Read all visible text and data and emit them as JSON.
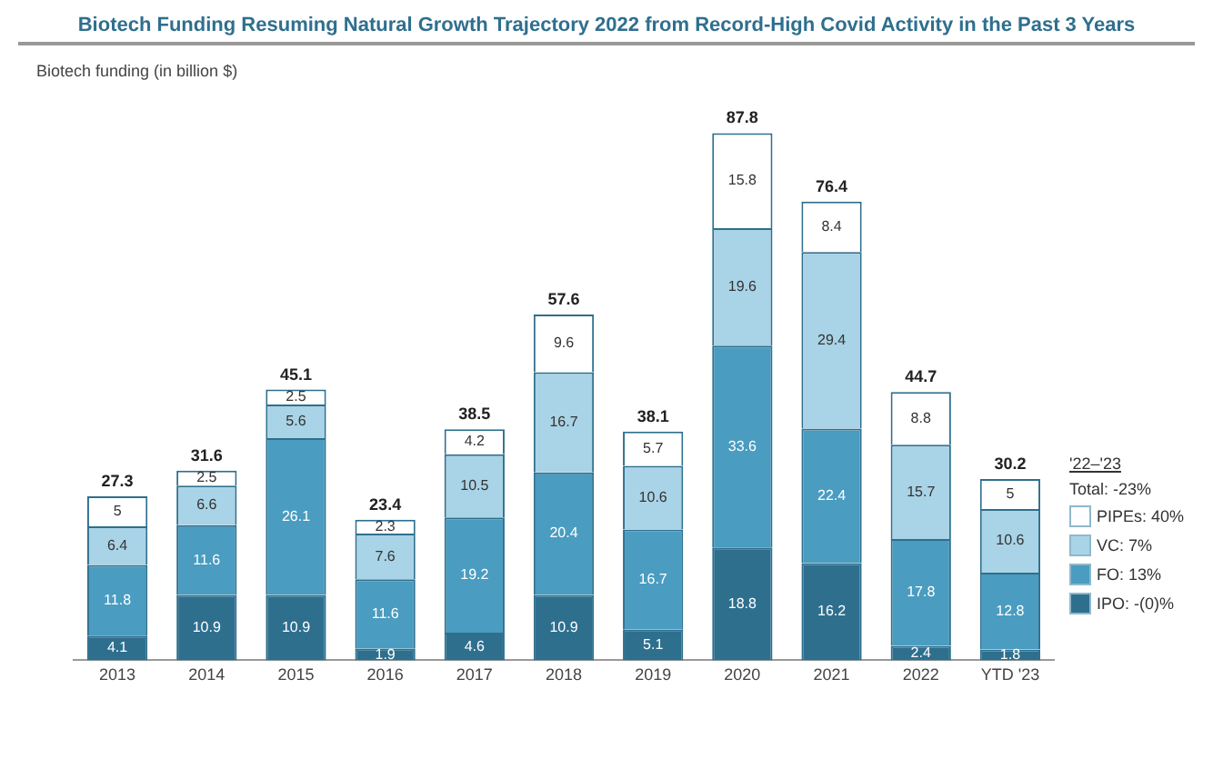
{
  "chart_data": {
    "type": "bar",
    "stacked": true,
    "title": "Biotech Funding Resuming Natural Growth Trajectory 2022 from Record-High Covid Activity in the Past 3 Years",
    "subtitle": "Biotech funding (in billion $)",
    "categories": [
      "2013",
      "2014",
      "2015",
      "2016",
      "2017",
      "2018",
      "2019",
      "2020",
      "2021",
      "2022",
      "YTD '23"
    ],
    "series": [
      {
        "name": "IPO: -(0)%",
        "color": "#2e6f8e",
        "values": [
          4.1,
          10.9,
          10.9,
          1.9,
          4.6,
          10.9,
          5.1,
          18.8,
          16.2,
          2.4,
          1.8
        ]
      },
      {
        "name": "FO: 13%",
        "color": "#4a9cc0",
        "values": [
          11.8,
          11.6,
          26.1,
          11.6,
          19.2,
          20.4,
          16.7,
          33.6,
          22.4,
          17.8,
          12.8
        ]
      },
      {
        "name": "VC: 7%",
        "color": "#a9d3e6",
        "values": [
          6.4,
          6.6,
          5.6,
          7.6,
          10.5,
          16.7,
          10.6,
          19.6,
          29.4,
          15.7,
          10.6
        ]
      },
      {
        "name": "PIPEs: 40%",
        "color": "#ffffff",
        "values": [
          5.0,
          2.5,
          2.5,
          2.3,
          4.2,
          9.6,
          5.7,
          15.8,
          8.4,
          8.8,
          5.0
        ]
      }
    ],
    "totals": [
      "27.3",
      "31.6",
      "45.1",
      "23.4",
      "38.5",
      "57.6",
      "38.1",
      "87.8",
      "76.4",
      "44.7",
      "30.2"
    ],
    "data_labels": true,
    "tick_labels": "x",
    "grid": false,
    "legend": "right",
    "legend_title": "'22–'23",
    "annotations": [
      "Total: -23%"
    ]
  }
}
